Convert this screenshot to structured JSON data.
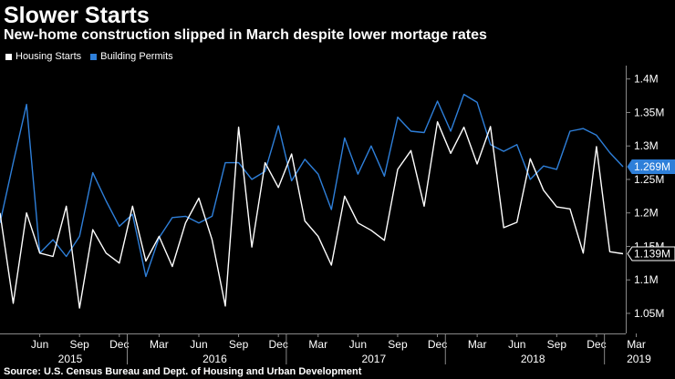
{
  "chart_data": {
    "type": "line",
    "title": "Slower Starts",
    "subtitle": "New-home construction slipped in March despite lower mortage rates",
    "source": "Source: U.S. Census Bureau and Dept. of Housing and Urban Development",
    "ylabel": "",
    "xlabel": "",
    "ylim": [
      1.02,
      1.42
    ],
    "yticks": [
      1.05,
      1.1,
      1.15,
      1.2,
      1.25,
      1.3,
      1.35,
      1.4
    ],
    "ytick_labels": [
      "1.05M",
      "1.1M",
      "1.15M",
      "1.2M",
      "1.25M",
      "1.3M",
      "1.35M",
      "1.4M"
    ],
    "grid": false,
    "legend_position": "top-left",
    "x_start": "2015-03",
    "x_end": "2019-03",
    "x_month_ticks": [
      {
        "label": "Jun",
        "index": 3
      },
      {
        "label": "Sep",
        "index": 6
      },
      {
        "label": "Dec",
        "index": 9
      },
      {
        "label": "Mar",
        "index": 12
      },
      {
        "label": "Jun",
        "index": 15
      },
      {
        "label": "Sep",
        "index": 18
      },
      {
        "label": "Dec",
        "index": 21
      },
      {
        "label": "Mar",
        "index": 24
      },
      {
        "label": "Jun",
        "index": 27
      },
      {
        "label": "Sep",
        "index": 30
      },
      {
        "label": "Dec",
        "index": 33
      },
      {
        "label": "Mar",
        "index": 36
      },
      {
        "label": "Jun",
        "index": 39
      },
      {
        "label": "Sep",
        "index": 42
      },
      {
        "label": "Dec",
        "index": 45
      },
      {
        "label": "Mar",
        "index": 48
      }
    ],
    "x_year_labels": [
      {
        "label": "2015",
        "index": 5.3
      },
      {
        "label": "2016",
        "index": 16.2
      },
      {
        "label": "2017",
        "index": 28.2
      },
      {
        "label": "2018",
        "index": 40.2
      },
      {
        "label": "2019",
        "index": 48.2
      }
    ],
    "x_year_dividers": [
      9.6,
      21.6,
      33.6,
      45.6
    ],
    "series": [
      {
        "name": "Housing Starts",
        "color": "#ffffff",
        "last_label": "1.139M",
        "values": [
          1.2,
          1.065,
          1.2,
          1.14,
          1.135,
          1.21,
          1.058,
          1.175,
          1.14,
          1.125,
          1.21,
          1.128,
          1.165,
          1.12,
          1.185,
          1.222,
          1.16,
          1.061,
          1.328,
          1.149,
          1.275,
          1.238,
          1.288,
          1.188,
          1.165,
          1.122,
          1.225,
          1.185,
          1.174,
          1.159,
          1.265,
          1.293,
          1.21,
          1.336,
          1.289,
          1.328,
          1.273,
          1.329,
          1.178,
          1.186,
          1.281,
          1.234,
          1.209,
          1.206,
          1.14,
          1.299,
          1.142,
          1.139
        ]
      },
      {
        "name": "Building Permits",
        "color": "#2e7fd9",
        "last_label": "1.269M",
        "values": [
          1.185,
          1.275,
          1.362,
          1.14,
          1.16,
          1.135,
          1.165,
          1.26,
          1.218,
          1.18,
          1.198,
          1.105,
          1.163,
          1.193,
          1.195,
          1.185,
          1.195,
          1.275,
          1.275,
          1.25,
          1.262,
          1.33,
          1.248,
          1.28,
          1.258,
          1.205,
          1.312,
          1.258,
          1.3,
          1.255,
          1.343,
          1.322,
          1.32,
          1.367,
          1.322,
          1.377,
          1.365,
          1.302,
          1.292,
          1.302,
          1.25,
          1.27,
          1.265,
          1.322,
          1.326,
          1.316,
          1.29,
          1.269
        ]
      }
    ]
  }
}
